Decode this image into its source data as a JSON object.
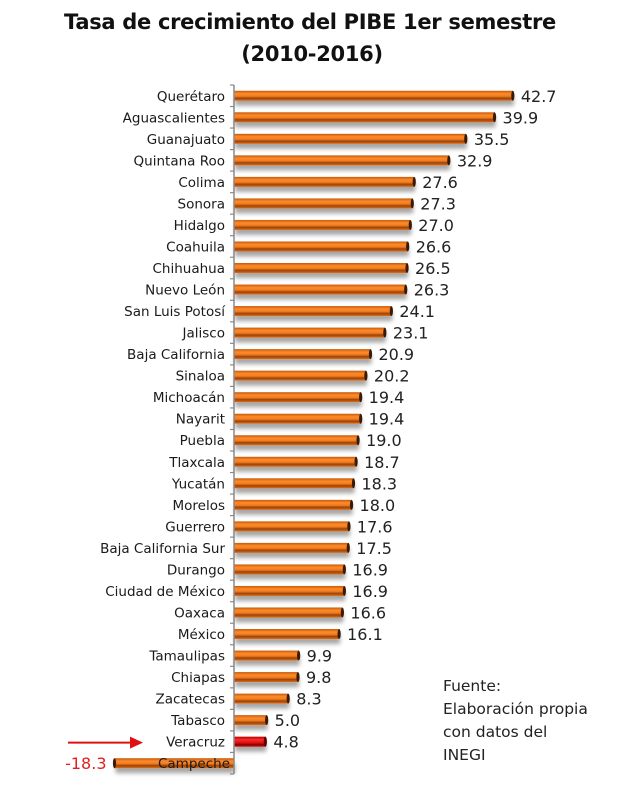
{
  "chart_data": {
    "type": "bar",
    "orientation": "horizontal",
    "title": "Tasa de crecimiento del PIBE 1er semestre",
    "subtitle": "(2010-2016)",
    "xlabel": "",
    "ylabel": "",
    "grid": false,
    "legend": "none",
    "categories": [
      "Querétaro",
      "Aguascalientes",
      "Guanajuato",
      "Quintana Roo",
      "Colima",
      "Sonora",
      "Hidalgo",
      "Coahuila",
      "Chihuahua",
      "Nuevo León",
      "San Luis Potosí",
      "Jalisco",
      "Baja California",
      "Sinaloa",
      "Michoacán",
      "Nayarit",
      "Puebla",
      "Tlaxcala",
      "Yucatán",
      "Morelos",
      "Guerrero",
      "Baja California Sur",
      "Durango",
      "Ciudad de México",
      "Oaxaca",
      "México",
      "Tamaulipas",
      "Chiapas",
      "Zacatecas",
      "Tabasco",
      "Veracruz",
      "Campeche"
    ],
    "values": [
      42.7,
      39.9,
      35.5,
      32.9,
      27.6,
      27.3,
      27.0,
      26.6,
      26.5,
      26.3,
      24.1,
      23.1,
      20.9,
      20.2,
      19.4,
      19.4,
      19.0,
      18.7,
      18.3,
      18.0,
      17.6,
      17.5,
      16.9,
      16.9,
      16.6,
      16.1,
      9.9,
      9.8,
      8.3,
      5.0,
      4.8,
      -18.3
    ],
    "data_labels": [
      "42.7",
      "39.9",
      "35.5",
      "32.9",
      "27.6",
      "27.3",
      "27.0",
      "26.6",
      "26.5",
      "26.3",
      "24.1",
      "23.1",
      "20.9",
      "20.2",
      "19.4",
      "19.4",
      "19.0",
      "18.7",
      "18.3",
      "18.0",
      "17.6",
      "17.5",
      "16.9",
      "16.9",
      "16.6",
      "16.1",
      "9.9",
      "9.8",
      "8.3",
      "5.0",
      "4.8",
      "-18.3"
    ],
    "xlim": [
      -18.3,
      42.7
    ],
    "highlight": {
      "category": "Veracruz",
      "annotation": "arrow"
    },
    "colors": {
      "bar": "#f07c1e",
      "bar_dark": "#9a4208",
      "highlight": "#e01010",
      "negative_label": "#e02020",
      "label": "#222222"
    }
  },
  "source_note": [
    "Fuente:",
    "Elaboración propia",
    "con datos del",
    "INEGI"
  ]
}
